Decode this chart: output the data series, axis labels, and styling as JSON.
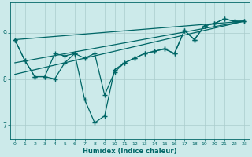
{
  "xlabel": "Humidex (Indice chaleur)",
  "bg_color": "#cceaea",
  "grid_color": "#aacccc",
  "line_color": "#006666",
  "xlim": [
    -0.5,
    23.5
  ],
  "ylim": [
    6.7,
    9.65
  ],
  "yticks": [
    7,
    8,
    9
  ],
  "xticks": [
    0,
    1,
    2,
    3,
    4,
    5,
    6,
    7,
    8,
    9,
    10,
    11,
    12,
    13,
    14,
    15,
    16,
    17,
    18,
    19,
    20,
    21,
    22,
    23
  ],
  "series1_x": [
    0,
    1,
    2,
    3,
    4,
    5,
    6,
    7,
    8,
    9,
    10,
    11,
    12,
    13,
    14,
    15,
    16,
    17,
    18,
    19,
    20,
    21,
    22,
    23
  ],
  "series1_y": [
    8.85,
    8.4,
    8.05,
    8.05,
    8.55,
    8.5,
    8.55,
    7.55,
    7.05,
    7.2,
    8.2,
    8.35,
    8.45,
    8.55,
    8.6,
    8.65,
    8.55,
    9.05,
    8.85,
    9.15,
    9.2,
    9.3,
    9.25,
    9.25
  ],
  "series2_x": [
    0,
    1,
    2,
    3,
    4,
    5,
    6,
    7,
    8,
    9,
    10,
    11,
    12,
    13,
    14,
    15,
    16,
    17,
    18,
    19,
    20,
    21,
    22,
    23
  ],
  "series2_y": [
    8.85,
    8.4,
    8.05,
    8.05,
    8.0,
    8.35,
    8.55,
    8.45,
    8.55,
    7.65,
    8.15,
    8.35,
    8.45,
    8.55,
    8.6,
    8.65,
    8.55,
    9.05,
    8.85,
    9.15,
    9.2,
    9.3,
    9.25,
    9.25
  ],
  "series3_x": [
    0,
    23
  ],
  "series3_y": [
    8.85,
    9.25
  ],
  "series4_x": [
    0,
    23
  ],
  "series4_y": [
    8.35,
    9.25
  ],
  "series5_x": [
    0,
    23
  ],
  "series5_y": [
    8.1,
    9.25
  ]
}
